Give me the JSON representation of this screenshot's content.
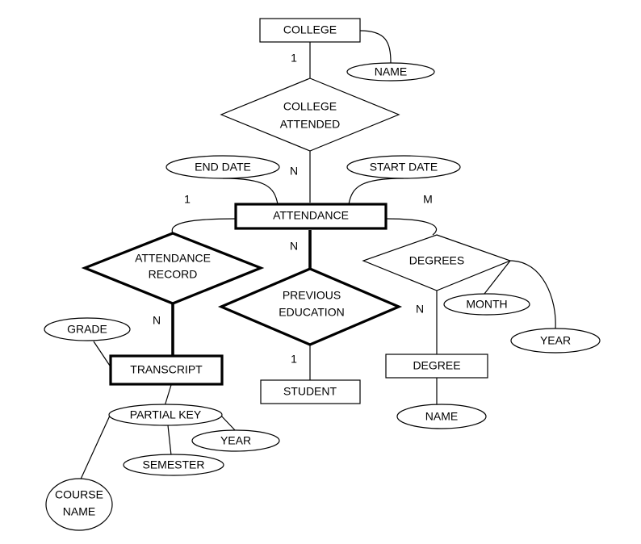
{
  "entities": {
    "college": "COLLEGE",
    "attendance": "ATTENDANCE",
    "transcript": "TRANSCRIPT",
    "student": "STUDENT",
    "degree": "DEGREE"
  },
  "relationships": {
    "college_attended": [
      "COLLEGE",
      "ATTENDED"
    ],
    "attendance_record": [
      "ATTENDANCE",
      "RECORD"
    ],
    "previous_education": [
      "PREVIOUS",
      "EDUCATION"
    ],
    "degrees": "DEGREES"
  },
  "attributes": {
    "college_name": "NAME",
    "end_date": "END DATE",
    "start_date": "START DATE",
    "month": "MONTH",
    "degrees_year": "YEAR",
    "grade": "GRADE",
    "partial_key": "PARTIAL KEY",
    "partial_year": "YEAR",
    "semester": "SEMESTER",
    "course_name": [
      "COURSE",
      "NAME"
    ],
    "degree_name": "NAME"
  },
  "cardinalities": {
    "college_1": "1",
    "attendance_n_top": "N",
    "attendance_1_left": "1",
    "attendance_m_right": "M",
    "attendance_n_bottom": "N",
    "record_n": "N",
    "student_1": "1",
    "degree_n": "N"
  }
}
